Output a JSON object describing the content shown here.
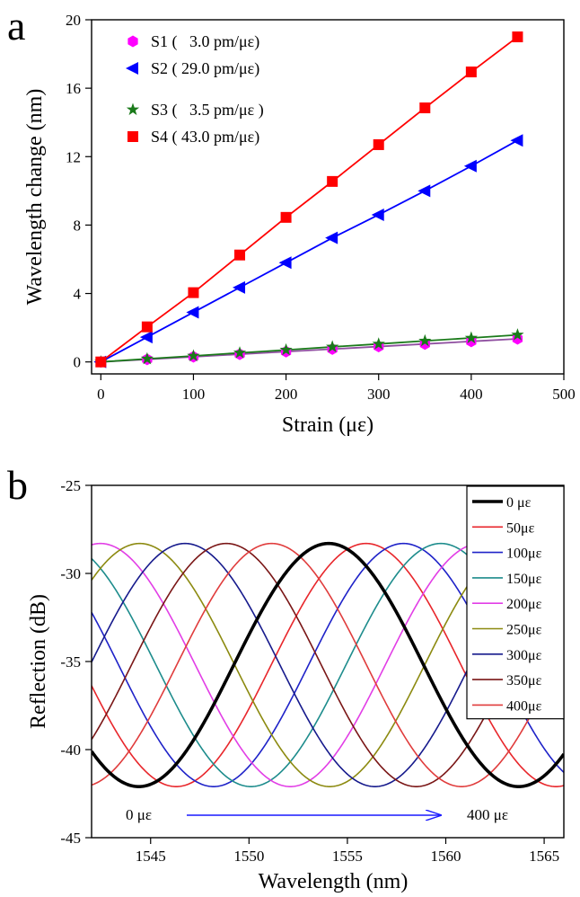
{
  "chart_data": [
    {
      "panel_label": "a",
      "type": "line",
      "xlabel": "Strain (με)",
      "ylabel": "Wavelength change (nm)",
      "xlim": [
        -10,
        500
      ],
      "ylim": [
        -0.7,
        20
      ],
      "xticks": [
        0,
        100,
        200,
        300,
        400,
        500
      ],
      "yticks": [
        0,
        4,
        8,
        12,
        16,
        20
      ],
      "legend_position": "top-left",
      "x": [
        0,
        50,
        100,
        150,
        200,
        250,
        300,
        350,
        400,
        450
      ],
      "series": [
        {
          "name": "S1",
          "legend_label": "S1 (   3.0 pm/με)",
          "slope_pm_per_ue": 3.0,
          "marker": "hexagon",
          "color": "#ff00ff",
          "line_color": "#8f4fa0",
          "values": [
            0,
            0.15,
            0.3,
            0.45,
            0.6,
            0.75,
            0.9,
            1.05,
            1.2,
            1.35
          ]
        },
        {
          "name": "S2",
          "legend_label": "S2 ( 29.0 pm/με)",
          "slope_pm_per_ue": 29.0,
          "marker": "triangle-left",
          "color": "#0000ff",
          "line_color": "#0000ff",
          "values": [
            0,
            1.45,
            2.9,
            4.35,
            5.8,
            7.25,
            8.6,
            10.0,
            11.45,
            12.95
          ]
        },
        {
          "name": "S3",
          "legend_label": "S3 (   3.5 pm/με )",
          "slope_pm_per_ue": 3.5,
          "marker": "star",
          "color": "#1a7a1a",
          "line_color": "#1a7a1a",
          "values": [
            0,
            0.18,
            0.35,
            0.53,
            0.7,
            0.88,
            1.05,
            1.23,
            1.4,
            1.58
          ]
        },
        {
          "name": "S4",
          "legend_label": "S4 ( 43.0 pm/με)",
          "slope_pm_per_ue": 43.0,
          "marker": "square",
          "color": "#ff0000",
          "line_color": "#ff0000",
          "values": [
            0,
            2.05,
            4.05,
            6.25,
            8.45,
            10.55,
            12.7,
            14.85,
            16.95,
            19.0
          ]
        }
      ]
    },
    {
      "panel_label": "b",
      "type": "line",
      "xlabel": "Wavelength (nm)",
      "ylabel": "Reflection (dB)",
      "xlim": [
        1542,
        1566
      ],
      "ylim": [
        -45,
        -25
      ],
      "xticks": [
        1545,
        1550,
        1555,
        1560,
        1565
      ],
      "yticks": [
        -25,
        -30,
        -35,
        -40,
        -45
      ],
      "legend_position": "top-right",
      "curve_max_db": -28.3,
      "curve_min_db": -42.1,
      "period_nm": 19.3,
      "annotation": {
        "start": "0 με",
        "end": "400 με"
      },
      "series": [
        {
          "name": "0 με",
          "color": "#000000",
          "dip_nm": 1544.4,
          "bold": true
        },
        {
          "name": "50με",
          "color": "#e8262b",
          "dip_nm": 1546.3
        },
        {
          "name": "100με",
          "color": "#1e22c8",
          "dip_nm": 1548.2
        },
        {
          "name": "150με",
          "color": "#1d8c8c",
          "dip_nm": 1550.1
        },
        {
          "name": "200με",
          "color": "#e23ee6",
          "dip_nm": 1552.1
        },
        {
          "name": "250με",
          "color": "#8c8a10",
          "dip_nm": 1554.1
        },
        {
          "name": "300με",
          "color": "#161a8c",
          "dip_nm": 1556.4
        },
        {
          "name": "350με",
          "color": "#7a1616",
          "dip_nm": 1558.5
        },
        {
          "name": "400με",
          "color": "#e03c3c",
          "dip_nm": 1560.8
        }
      ]
    }
  ]
}
